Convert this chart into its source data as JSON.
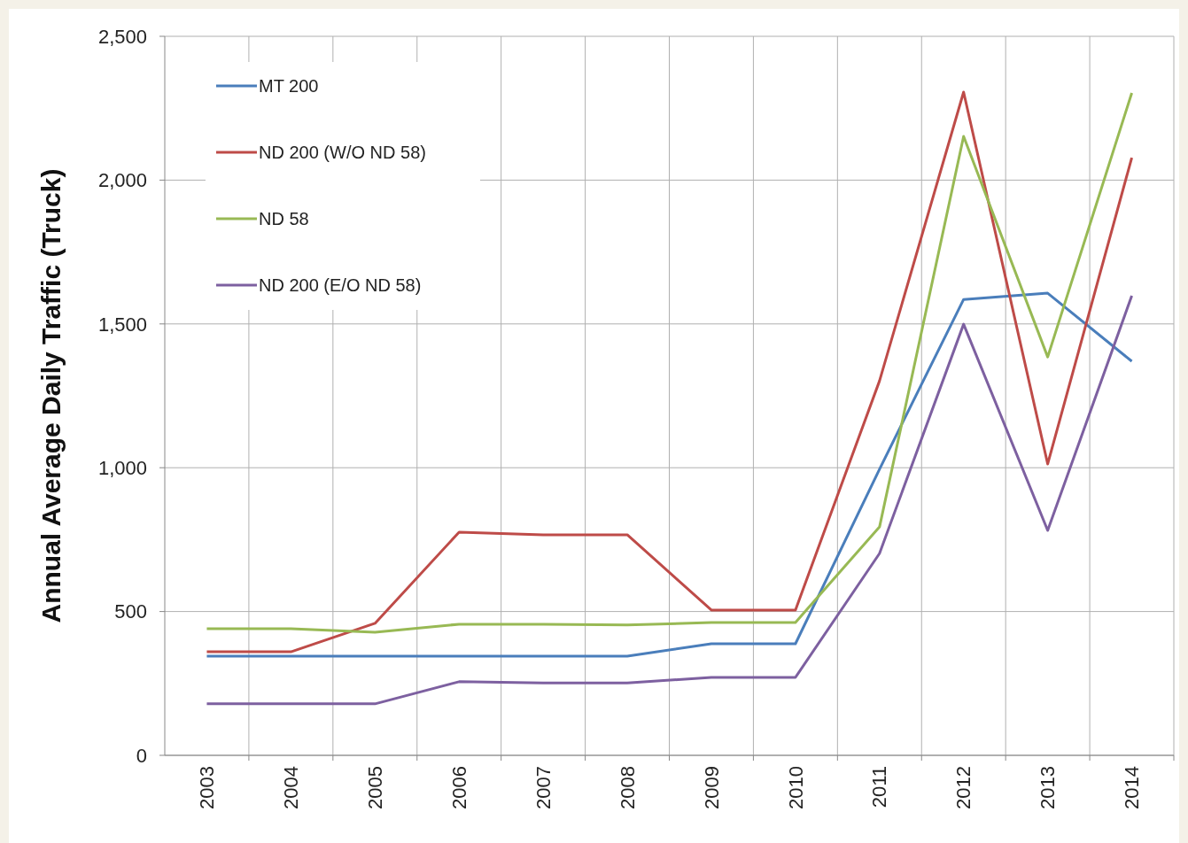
{
  "chart_data": {
    "type": "line",
    "ylabel": "Annual Average Daily Traffic (Truck)",
    "categories": [
      "2003",
      "2004",
      "2005",
      "2006",
      "2007",
      "2008",
      "2009",
      "2010",
      "2011",
      "2012",
      "2013",
      "2014"
    ],
    "series": [
      {
        "name": "MT 200",
        "color": "#4a7ebb",
        "values": [
          345,
          345,
          345,
          345,
          345,
          345,
          388,
          388,
          995,
          1585,
          1607,
          1370
        ]
      },
      {
        "name": "ND 200 (W/O ND 58)",
        "color": "#be4b48",
        "values": [
          360,
          360,
          459,
          776,
          767,
          767,
          505,
          505,
          1302,
          2306,
          1013,
          2078
        ]
      },
      {
        "name": "ND 58",
        "color": "#98b954",
        "values": [
          440,
          440,
          428,
          456,
          456,
          453,
          462,
          462,
          794,
          2152,
          1385,
          2303
        ]
      },
      {
        "name": "ND 200 (E/O ND 58)",
        "color": "#7d60a0",
        "values": [
          179,
          179,
          179,
          256,
          252,
          252,
          271,
          271,
          702,
          1499,
          782,
          1598
        ]
      }
    ],
    "ylim": [
      0,
      2500
    ],
    "yticks": [
      {
        "value": 0,
        "label": "0"
      },
      {
        "value": 500,
        "label": "500"
      },
      {
        "value": 1000,
        "label": "1,000"
      },
      {
        "value": 1500,
        "label": "1,500"
      },
      {
        "value": 2000,
        "label": "2,000"
      },
      {
        "value": 2500,
        "label": "2,500"
      }
    ],
    "grid": true,
    "legend": "top left",
    "marker": "none",
    "line_style": "solid"
  }
}
